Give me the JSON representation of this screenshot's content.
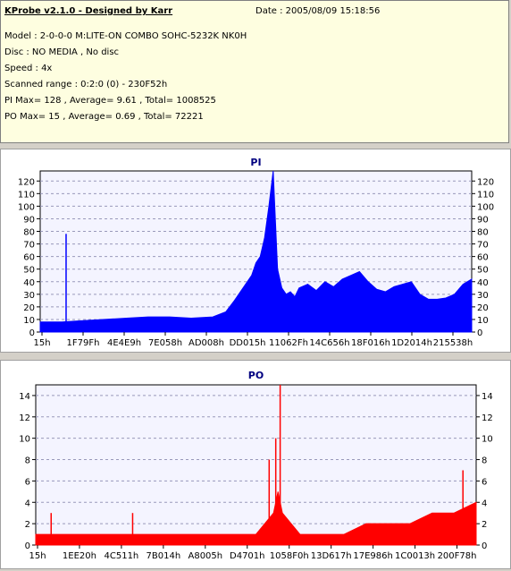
{
  "info": {
    "title": "KProbe v2.1.0 - Designed by Karr",
    "date": "Date : 2005/08/09 15:18:56",
    "lines": [
      "Model : 2-0-0-0 M:LITE-ON COMBO SOHC-5232K NK0H",
      "Disc : NO MEDIA , No disc",
      "Speed : 4x",
      "Scanned range : 0:2:0 (0) - 230F52h",
      "PI Max= 128 , Average= 9.61 , Total= 1008525",
      "PO Max= 15 , Average= 0.69 , Total= 72221"
    ]
  },
  "chart_data": [
    {
      "type": "area",
      "title": "PI",
      "color": "#0000ff",
      "ylim": [
        0,
        128
      ],
      "yticks": [
        0,
        10,
        20,
        30,
        40,
        50,
        60,
        70,
        80,
        90,
        100,
        110,
        120
      ],
      "xlabels": [
        "15h",
        "1F79Fh",
        "4E4E9h",
        "7E058h",
        "AD008h",
        "DD015h",
        "11062Fh",
        "14C656h",
        "18F016h",
        "1D2014h",
        "215538h"
      ],
      "grid": true,
      "series": [
        {
          "x": [
            0.0,
            0.05,
            0.1,
            0.15,
            0.2,
            0.25,
            0.3,
            0.35,
            0.4,
            0.43,
            0.45,
            0.47,
            0.49,
            0.5,
            0.51,
            0.52,
            0.53,
            0.54,
            0.55,
            0.56,
            0.57,
            0.58,
            0.59,
            0.6,
            0.62,
            0.64,
            0.66,
            0.68,
            0.7,
            0.72,
            0.74,
            0.76,
            0.78,
            0.8,
            0.82,
            0.84,
            0.86,
            0.88,
            0.9,
            0.92,
            0.94,
            0.96,
            0.98,
            1.0
          ],
          "values": [
            8,
            8,
            9,
            10,
            11,
            12,
            12,
            11,
            12,
            16,
            25,
            35,
            45,
            55,
            60,
            75,
            100,
            128,
            50,
            35,
            30,
            32,
            28,
            35,
            38,
            33,
            40,
            36,
            42,
            45,
            48,
            40,
            34,
            32,
            36,
            38,
            40,
            30,
            26,
            26,
            27,
            30,
            38,
            42
          ]
        }
      ],
      "spikes": [
        {
          "x": 0.06,
          "value": 78
        }
      ]
    },
    {
      "type": "area",
      "title": "PO",
      "color": "#ff0000",
      "ylim": [
        0,
        15
      ],
      "yticks": [
        0,
        2,
        4,
        6,
        8,
        10,
        12,
        14
      ],
      "xlabels": [
        "15h",
        "1EE20h",
        "4C511h",
        "7B014h",
        "A8005h",
        "D4701h",
        "1058F0h",
        "13D617h",
        "17E986h",
        "1C0013h",
        "200F78h"
      ],
      "grid": true,
      "series": [
        {
          "x": [
            0.0,
            0.1,
            0.2,
            0.3,
            0.4,
            0.45,
            0.5,
            0.52,
            0.54,
            0.55,
            0.56,
            0.58,
            0.6,
            0.65,
            0.7,
            0.75,
            0.8,
            0.85,
            0.9,
            0.95,
            1.0
          ],
          "values": [
            1,
            1,
            1,
            1,
            1,
            1,
            1,
            2,
            3,
            5,
            3,
            2,
            1,
            1,
            1,
            2,
            2,
            2,
            3,
            3,
            4
          ]
        }
      ],
      "spikes": [
        {
          "x": 0.035,
          "value": 3
        },
        {
          "x": 0.22,
          "value": 3
        },
        {
          "x": 0.53,
          "value": 8
        },
        {
          "x": 0.545,
          "value": 10
        },
        {
          "x": 0.555,
          "value": 15
        },
        {
          "x": 0.97,
          "value": 7
        }
      ]
    }
  ]
}
